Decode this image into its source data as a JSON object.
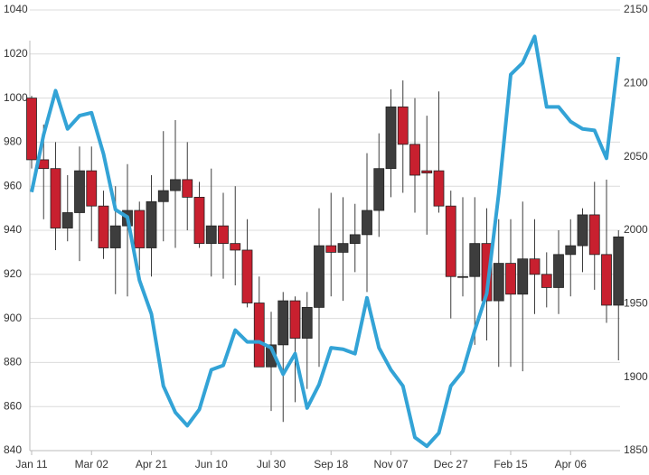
{
  "chart_data": {
    "type": "candlestick",
    "categories": [
      "Jan 11",
      null,
      null,
      null,
      null,
      "Mar 02",
      null,
      null,
      null,
      null,
      "Apr 21",
      null,
      null,
      null,
      null,
      "Jun 10",
      null,
      null,
      null,
      null,
      "Jul 30",
      null,
      null,
      null,
      null,
      "Sep 18",
      null,
      null,
      null,
      null,
      "Nov 07",
      null,
      null,
      null,
      null,
      "Dec 27",
      null,
      null,
      null,
      null,
      "Feb 15",
      null,
      null,
      null,
      null,
      "Apr 06",
      null,
      null,
      null,
      null
    ],
    "ylim": [
      840,
      1040
    ],
    "yticks": [
      840,
      860,
      880,
      900,
      920,
      940,
      960,
      980,
      1000,
      1020,
      1040
    ],
    "y2lim": [
      1850,
      2150
    ],
    "y2ticks": [
      1850,
      1900,
      1950,
      2000,
      2050,
      2100,
      2150
    ],
    "grid": true,
    "up_color": "#3d3d3d",
    "down_color": "#c8202f",
    "series": [
      {
        "type": "candlestick",
        "open": [
          1000,
          972,
          968,
          941,
          948,
          967,
          951,
          932,
          942,
          949,
          932,
          953,
          958,
          963,
          955,
          934,
          942,
          934,
          931,
          907,
          878,
          888,
          908,
          891,
          905,
          933,
          930,
          934,
          938,
          949,
          968,
          996,
          979,
          967,
          967,
          951,
          919,
          919,
          934,
          908,
          925,
          911,
          927,
          920,
          914,
          929,
          933,
          947,
          929,
          906
        ],
        "high": [
          1001,
          988,
          980,
          965,
          978,
          978,
          958,
          960,
          970,
          953,
          965,
          985,
          990,
          980,
          962,
          968,
          957,
          960,
          945,
          919,
          903,
          912,
          910,
          912,
          950,
          957,
          955,
          952,
          975,
          984,
          1004,
          1008,
          1000,
          992,
          1003,
          958,
          955,
          955,
          950,
          945,
          945,
          953,
          945,
          930,
          940,
          945,
          950,
          962,
          963,
          940
        ],
        "low": [
          968,
          945,
          931,
          935,
          926,
          935,
          927,
          911,
          910,
          922,
          919,
          935,
          932,
          940,
          932,
          919,
          918,
          915,
          905,
          878,
          858,
          853,
          862,
          868,
          878,
          910,
          908,
          921,
          912,
          937,
          955,
          957,
          948,
          938,
          948,
          900,
          910,
          888,
          890,
          878,
          878,
          876,
          902,
          905,
          902,
          910,
          921,
          913,
          898,
          881
        ],
        "close": [
          972,
          968,
          941,
          948,
          967,
          951,
          932,
          942,
          949,
          932,
          953,
          958,
          963,
          955,
          934,
          942,
          934,
          931,
          907,
          878,
          888,
          908,
          891,
          905,
          933,
          930,
          934,
          938,
          949,
          968,
          996,
          979,
          965,
          966,
          951,
          919,
          919,
          934,
          908,
          925,
          911,
          927,
          920,
          914,
          929,
          933,
          947,
          929,
          906,
          937
        ]
      },
      {
        "type": "line",
        "axis": "y2",
        "color": "#33a3d6",
        "values": [
          2026,
          2065,
          2095,
          2069,
          2078,
          2080,
          2052,
          2014,
          2009,
          1966,
          1943,
          1894,
          1876,
          1867,
          1878,
          1905,
          1908,
          1932,
          1924,
          1924,
          1920,
          1902,
          1916,
          1879,
          1895,
          1920,
          1919,
          1916,
          1954,
          1920,
          1905,
          1894,
          1859,
          1853,
          1862,
          1894,
          1904,
          1932,
          1957,
          2025,
          2106,
          2114,
          2132,
          2084,
          2084,
          2074,
          2069,
          2068,
          2049,
          2118
        ]
      }
    ]
  }
}
